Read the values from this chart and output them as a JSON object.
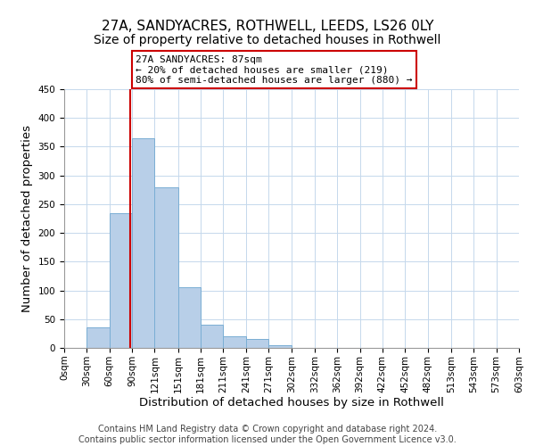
{
  "title": "27A, SANDYACRES, ROTHWELL, LEEDS, LS26 0LY",
  "subtitle": "Size of property relative to detached houses in Rothwell",
  "xlabel": "Distribution of detached houses by size in Rothwell",
  "ylabel": "Number of detached properties",
  "bar_color": "#b8cfe8",
  "bar_edge_color": "#7aaed4",
  "property_line_color": "#cc0000",
  "property_size": 87,
  "annotation_line1": "27A SANDYACRES: 87sqm",
  "annotation_line2": "← 20% of detached houses are smaller (219)",
  "annotation_line3": "80% of semi-detached houses are larger (880) →",
  "bins": [
    0,
    30,
    60,
    90,
    120,
    151,
    181,
    211,
    241,
    271,
    302,
    332,
    362,
    392,
    422,
    452,
    482,
    513,
    543,
    573,
    603
  ],
  "bin_labels": [
    "0sqm",
    "30sqm",
    "60sqm",
    "90sqm",
    "121sqm",
    "151sqm",
    "181sqm",
    "211sqm",
    "241sqm",
    "271sqm",
    "302sqm",
    "332sqm",
    "362sqm",
    "392sqm",
    "422sqm",
    "452sqm",
    "482sqm",
    "513sqm",
    "543sqm",
    "573sqm",
    "603sqm"
  ],
  "counts": [
    0,
    35,
    235,
    365,
    280,
    105,
    40,
    20,
    15,
    5,
    0,
    0,
    0,
    0,
    0,
    0,
    0,
    0,
    0,
    0
  ],
  "ylim": [
    0,
    450
  ],
  "yticks": [
    0,
    50,
    100,
    150,
    200,
    250,
    300,
    350,
    400,
    450
  ],
  "footer_line1": "Contains HM Land Registry data © Crown copyright and database right 2024.",
  "footer_line2": "Contains public sector information licensed under the Open Government Licence v3.0.",
  "title_fontsize": 11,
  "subtitle_fontsize": 10,
  "axis_label_fontsize": 9.5,
  "tick_fontsize": 7.5,
  "footer_fontsize": 7
}
